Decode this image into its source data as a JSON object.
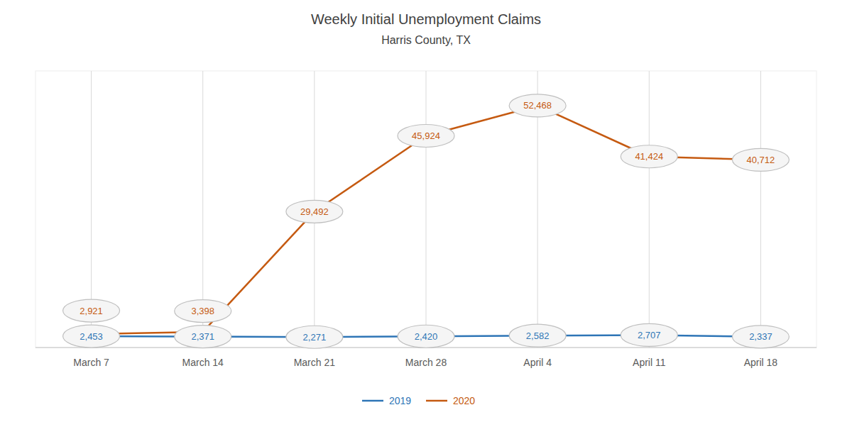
{
  "chart_data": {
    "type": "line",
    "title": "Weekly Initial Unemployment Claims",
    "subtitle": "Harris County, TX",
    "categories": [
      "March 7",
      "March 14",
      "March 21",
      "March 28",
      "April 4",
      "April 11",
      "April 18"
    ],
    "series": [
      {
        "name": "2019",
        "color": "#2E75B6",
        "line_style": "solid",
        "values": [
          2453,
          2371,
          2271,
          2420,
          2582,
          2707,
          2337
        ],
        "value_labels": [
          "2,453",
          "2,371",
          "2,271",
          "2,420",
          "2,582",
          "2,707",
          "2,337"
        ]
      },
      {
        "name": "2020",
        "color": "#C55A11",
        "line_style": "solid",
        "values": [
          2921,
          3398,
          29492,
          45924,
          52468,
          41424,
          40712
        ],
        "value_labels": [
          "2,921",
          "3,398",
          "29,492",
          "45,924",
          "52,468",
          "41,424",
          "40,712"
        ]
      }
    ],
    "ylim": [
      0,
      60000
    ],
    "grid": true,
    "legend": "bottom",
    "data_labels": true,
    "tick_labels": "x"
  }
}
